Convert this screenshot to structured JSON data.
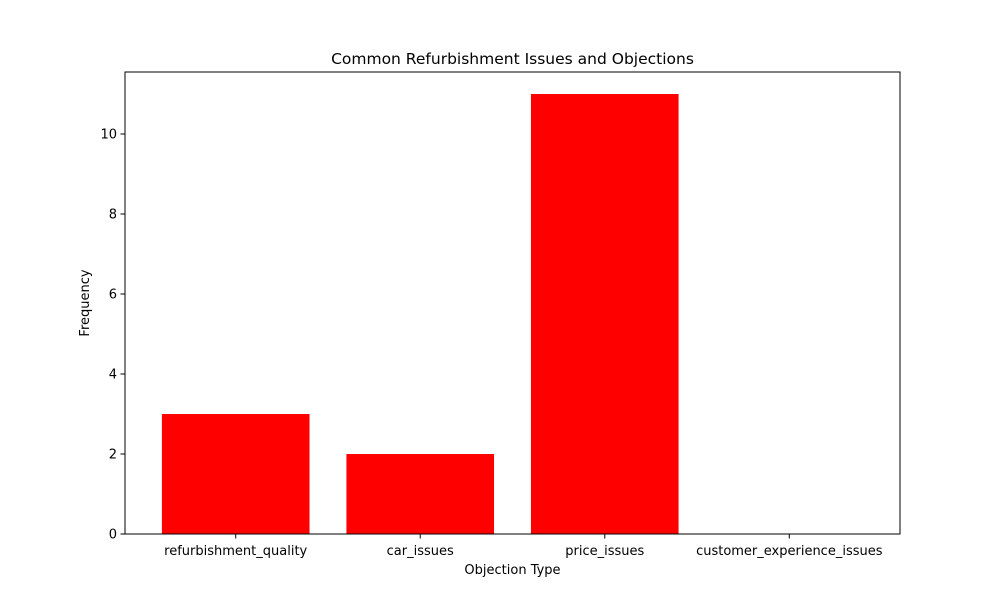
{
  "chart_data": {
    "type": "bar",
    "title": "Common Refurbishment Issues and Objections",
    "xlabel": "Objection Type",
    "ylabel": "Frequency",
    "categories": [
      "refurbishment_quality",
      "car_issues",
      "price_issues",
      "customer_experience_issues"
    ],
    "values": [
      3,
      2,
      11,
      0
    ],
    "ylim": [
      0,
      11.55
    ],
    "yticks": [
      0,
      2,
      4,
      6,
      8,
      10
    ],
    "bar_color": "#ff0000",
    "grid": false,
    "legend": "none"
  }
}
